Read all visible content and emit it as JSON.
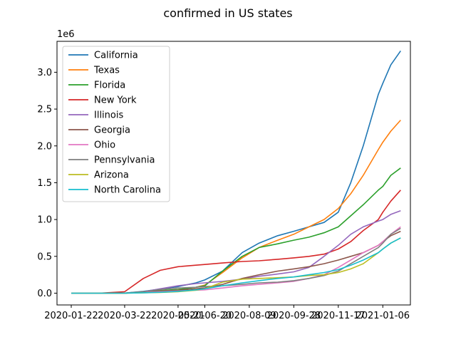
{
  "chart_data": {
    "type": "line",
    "title": "confirmed in US states",
    "xlabel": "",
    "ylabel": "",
    "y_offset_label": "1e6",
    "y_multiplier": 1000000,
    "xlim": [
      "2020-01-06",
      "2021-02-06"
    ],
    "ylim": [
      -0.16,
      3.42
    ],
    "x_ticks": [
      "2020-01-22",
      "2020-03-22",
      "2020-05-21",
      "2020-06-20",
      "2020-08-09",
      "2020-09-28",
      "2020-11-17",
      "2021-01-06"
    ],
    "y_ticks": [
      0.0,
      0.5,
      1.0,
      1.5,
      2.0,
      2.5,
      3.0
    ],
    "y_tick_labels": [
      "0.0",
      "0.5",
      "1.0",
      "1.5",
      "2.0",
      "2.5",
      "3.0"
    ],
    "grid": false,
    "legend_position": "top-left",
    "x": [
      "2020-01-22",
      "2020-02-22",
      "2020-03-22",
      "2020-04-12",
      "2020-05-01",
      "2020-05-21",
      "2020-06-10",
      "2020-06-20",
      "2020-07-10",
      "2020-08-01",
      "2020-08-20",
      "2020-09-10",
      "2020-09-28",
      "2020-10-15",
      "2020-11-01",
      "2020-11-17",
      "2020-12-01",
      "2020-12-15",
      "2021-01-01",
      "2021-01-06",
      "2021-01-15",
      "2021-01-26"
    ],
    "series": [
      {
        "name": "California",
        "color": "#1f77b4",
        "values": [
          0,
          0,
          0.002,
          0.025,
          0.055,
          0.09,
          0.14,
          0.18,
          0.3,
          0.55,
          0.68,
          0.78,
          0.84,
          0.9,
          0.96,
          1.1,
          1.5,
          2.0,
          2.7,
          2.85,
          3.1,
          3.29
        ]
      },
      {
        "name": "Texas",
        "color": "#ff7f0e",
        "values": [
          0,
          0,
          0.001,
          0.015,
          0.03,
          0.05,
          0.08,
          0.11,
          0.28,
          0.48,
          0.62,
          0.72,
          0.8,
          0.9,
          1.0,
          1.15,
          1.35,
          1.6,
          1.95,
          2.05,
          2.2,
          2.35
        ]
      },
      {
        "name": "Florida",
        "color": "#2ca02c",
        "values": [
          0,
          0,
          0.001,
          0.02,
          0.035,
          0.05,
          0.08,
          0.1,
          0.3,
          0.5,
          0.62,
          0.67,
          0.72,
          0.76,
          0.82,
          0.9,
          1.05,
          1.2,
          1.4,
          1.45,
          1.6,
          1.7
        ]
      },
      {
        "name": "New York",
        "color": "#d62728",
        "values": [
          0,
          0,
          0.02,
          0.2,
          0.31,
          0.36,
          0.38,
          0.39,
          0.41,
          0.43,
          0.44,
          0.46,
          0.48,
          0.5,
          0.53,
          0.6,
          0.7,
          0.85,
          1.0,
          1.1,
          1.25,
          1.4
        ]
      },
      {
        "name": "Illinois",
        "color": "#9467bd",
        "values": [
          0,
          0,
          0.001,
          0.02,
          0.06,
          0.1,
          0.13,
          0.14,
          0.16,
          0.19,
          0.23,
          0.26,
          0.29,
          0.35,
          0.5,
          0.65,
          0.8,
          0.9,
          0.98,
          1.0,
          1.07,
          1.12
        ]
      },
      {
        "name": "Georgia",
        "color": "#8c564b",
        "values": [
          0,
          0,
          0.001,
          0.015,
          0.03,
          0.04,
          0.06,
          0.07,
          0.12,
          0.2,
          0.25,
          0.3,
          0.33,
          0.36,
          0.4,
          0.45,
          0.5,
          0.55,
          0.65,
          0.7,
          0.78,
          0.84
        ]
      },
      {
        "name": "Ohio",
        "color": "#e377c2",
        "values": [
          0,
          0,
          0.001,
          0.008,
          0.02,
          0.03,
          0.04,
          0.045,
          0.07,
          0.1,
          0.12,
          0.14,
          0.16,
          0.2,
          0.25,
          0.35,
          0.45,
          0.55,
          0.65,
          0.7,
          0.8,
          0.9
        ]
      },
      {
        "name": "Pennsylvania",
        "color": "#7f7f7f",
        "values": [
          0,
          0,
          0.001,
          0.02,
          0.05,
          0.07,
          0.08,
          0.09,
          0.1,
          0.12,
          0.14,
          0.15,
          0.17,
          0.2,
          0.24,
          0.3,
          0.4,
          0.5,
          0.62,
          0.68,
          0.8,
          0.88
        ]
      },
      {
        "name": "Arizona",
        "color": "#bcbd22",
        "values": [
          0,
          0,
          0.001,
          0.005,
          0.01,
          0.02,
          0.04,
          0.06,
          0.15,
          0.19,
          0.2,
          0.21,
          0.22,
          0.24,
          0.25,
          0.28,
          0.33,
          0.4,
          0.55,
          0.6,
          0.68,
          0.75
        ]
      },
      {
        "name": "North Carolina",
        "color": "#17becf",
        "values": [
          0,
          0,
          0.001,
          0.005,
          0.012,
          0.025,
          0.045,
          0.06,
          0.1,
          0.14,
          0.17,
          0.2,
          0.22,
          0.25,
          0.28,
          0.32,
          0.38,
          0.45,
          0.55,
          0.6,
          0.68,
          0.75
        ]
      }
    ]
  }
}
